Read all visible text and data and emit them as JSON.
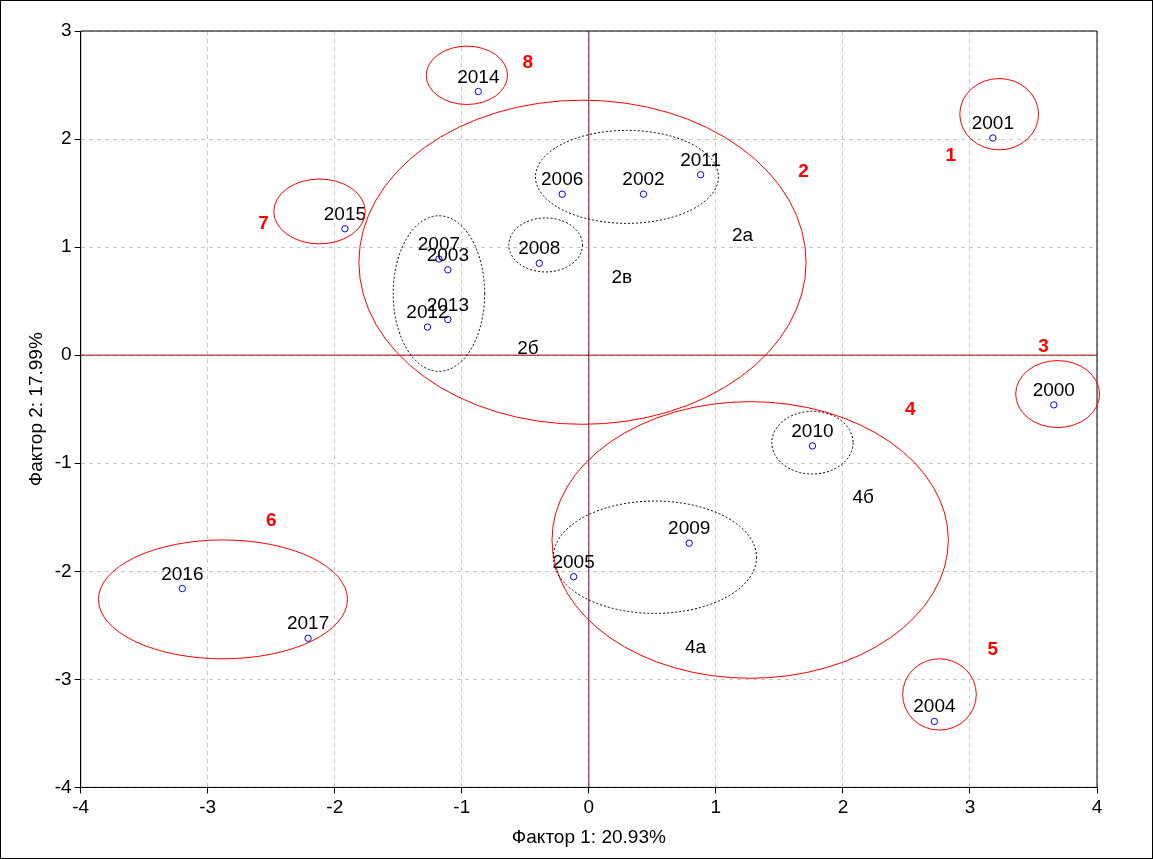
{
  "chart_data": {
    "type": "scatter",
    "xlabel": "Фактор 1: 20.93%",
    "ylabel": "Фактор 2: 17.99%",
    "xlim": [
      -4,
      4
    ],
    "ylim": [
      -4,
      3
    ],
    "xticks": [
      -4,
      -3,
      -2,
      -1,
      0,
      1,
      2,
      3,
      4
    ],
    "yticks": [
      -4,
      -3,
      -2,
      -1,
      0,
      1,
      2,
      3
    ],
    "grid": true,
    "legend": false,
    "marker": "circle",
    "series": [
      {
        "color": "#0000ff",
        "x": [
          3.18,
          -0.87,
          0.88,
          0.43,
          -0.21,
          -1.92,
          -1.18,
          -1.11,
          -0.39,
          -1.11,
          -1.27,
          3.66,
          1.76,
          0.79,
          -0.12,
          -3.2,
          -2.21,
          2.72
        ],
        "values": [
          2.01,
          2.44,
          1.67,
          1.49,
          1.49,
          1.17,
          0.89,
          0.79,
          0.85,
          0.33,
          0.26,
          -0.46,
          -0.84,
          -1.74,
          -2.05,
          -2.16,
          -2.62,
          -3.39
        ]
      }
    ],
    "ref_lines": [
      {
        "axis": "x",
        "value": 0,
        "color": "#800040"
      },
      {
        "axis": "y",
        "value": 0,
        "color": "#a00000"
      }
    ],
    "annotations": [
      {
        "text": "2001",
        "x": 3.18,
        "y": 2.01
      },
      {
        "text": "2014",
        "x": -0.87,
        "y": 2.44
      },
      {
        "text": "2011",
        "x": 0.88,
        "y": 1.67
      },
      {
        "text": "2002",
        "x": 0.43,
        "y": 1.49
      },
      {
        "text": "2006",
        "x": -0.21,
        "y": 1.49
      },
      {
        "text": "2015",
        "x": -1.92,
        "y": 1.17
      },
      {
        "text": "2007",
        "x": -1.18,
        "y": 0.89
      },
      {
        "text": "2003",
        "x": -1.11,
        "y": 0.79
      },
      {
        "text": "2008",
        "x": -0.39,
        "y": 0.85
      },
      {
        "text": "2013",
        "x": -1.11,
        "y": 0.33
      },
      {
        "text": "2012",
        "x": -1.27,
        "y": 0.26
      },
      {
        "text": "2000",
        "x": 3.66,
        "y": -0.46
      },
      {
        "text": "2010",
        "x": 1.76,
        "y": -0.84
      },
      {
        "text": "2009",
        "x": 0.79,
        "y": -1.74
      },
      {
        "text": "2005",
        "x": -0.12,
        "y": -2.05
      },
      {
        "text": "2016",
        "x": -3.2,
        "y": -2.16
      },
      {
        "text": "2017",
        "x": -2.21,
        "y": -2.62
      },
      {
        "text": "2004",
        "x": 2.72,
        "y": -3.39
      },
      "1",
      "2",
      "3",
      "4",
      "5",
      "6",
      "7",
      "8",
      "2а",
      "2б",
      "2в",
      "4а",
      "4б"
    ]
  }
}
